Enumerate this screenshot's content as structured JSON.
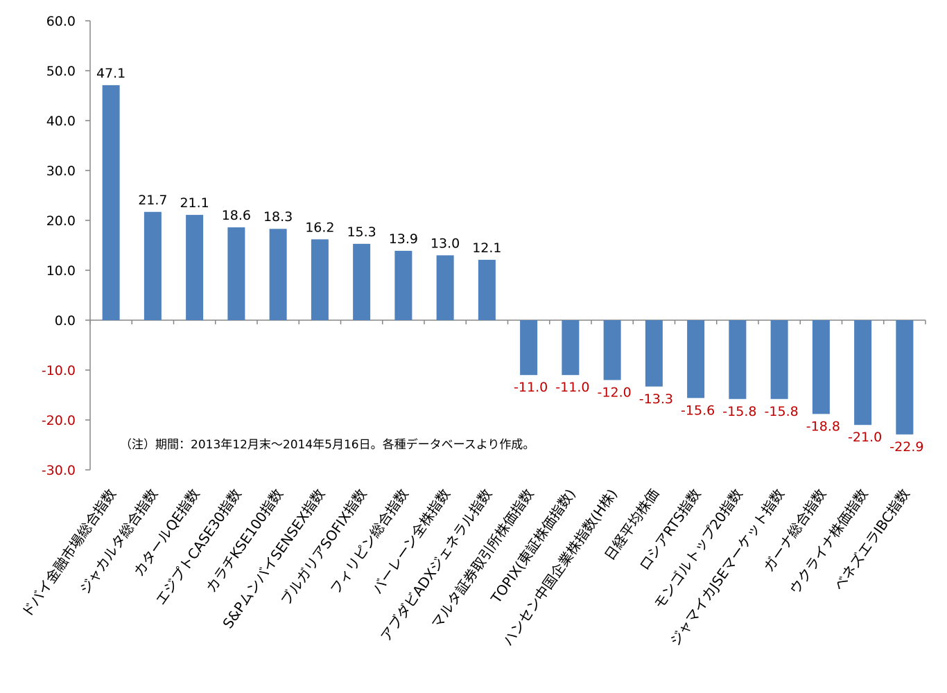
{
  "chart_data": {
    "type": "bar",
    "categories": [
      "ドバイ金融市場総合指数",
      "ジャカルタ総合指数",
      "カタールQE指数",
      "エジプトCASE30指数",
      "カラチKSE100指数",
      "S&PムンバイSENSEX指数",
      "ブルガリアSOFIX指数",
      "フィリピン総合指数",
      "バーレーン全株指数",
      "アブダビADXジェネラル指数",
      "マルタ証券取引所株価指数",
      "TOPIX(東証株価指数)",
      "ハンセン中国企業株指数(H株)",
      "日経平均株価",
      "ロシアRTS指数",
      "モンゴルトップ20指数",
      "ジャマイカJSEマーケット指数",
      "ガーナ総合指数",
      "ウクライナ株価指数",
      "ベネズエラIBC指数"
    ],
    "values": [
      47.1,
      21.7,
      21.1,
      18.6,
      18.3,
      16.2,
      15.3,
      13.9,
      13.0,
      12.1,
      -11.0,
      -11.0,
      -12.0,
      -13.3,
      -15.6,
      -15.8,
      -15.8,
      -18.8,
      -21.0,
      -22.9
    ],
    "data_labels": [
      "47.1",
      "21.7",
      "21.1",
      "18.6",
      "18.3",
      "16.2",
      "15.3",
      "13.9",
      "13.0",
      "12.1",
      "-11.0",
      "-11.0",
      "-12.0",
      "-13.3",
      "-15.6",
      "-15.8",
      "-15.8",
      "-18.8",
      "-21.0",
      "-22.9"
    ],
    "ylim": [
      -30,
      60
    ],
    "y_ticks": [
      "60.0",
      "50.0",
      "40.0",
      "30.0",
      "20.0",
      "10.0",
      "0.0",
      "-10.0",
      "-20.0",
      "-30.0"
    ],
    "y_tick_values": [
      60,
      50,
      40,
      30,
      20,
      10,
      0,
      -10,
      -20,
      -30
    ],
    "note": "（注）期間：2013年12月末～2014年5月16日。各種データベースより作成。",
    "grid": false,
    "legend": "none",
    "colors": {
      "bar": "#4f81bd",
      "positive_text": "#000000",
      "negative_text": "#c00000",
      "axis": "#868686"
    }
  }
}
